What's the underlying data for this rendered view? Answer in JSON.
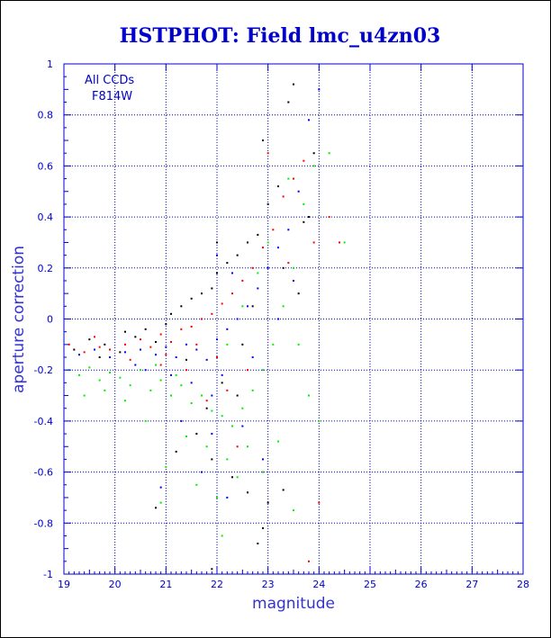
{
  "chart_data": {
    "type": "scatter",
    "title": "HSTPHOT: Field lmc_u4zn03",
    "xlabel": "magnitude",
    "ylabel": "aperture correction",
    "xlim": [
      19,
      28
    ],
    "ylim": [
      -1,
      1
    ],
    "grid": true,
    "x_ticks": [
      "19",
      "20",
      "21",
      "22",
      "23",
      "24",
      "25",
      "26",
      "27",
      "28"
    ],
    "y_ticks": [
      "-1",
      "-0.8",
      "-0.6",
      "-0.4",
      "-0.2",
      "0",
      "0.2",
      "0.4",
      "0.6",
      "0.8",
      "1"
    ],
    "annotations": [
      "All CCDs",
      "F814W"
    ],
    "series": [
      {
        "color": "#000000",
        "points": [
          [
            19.2,
            -0.12
          ],
          [
            19.5,
            -0.08
          ],
          [
            19.8,
            -0.1
          ],
          [
            20.1,
            -0.13
          ],
          [
            20.4,
            -0.07
          ],
          [
            20.6,
            -0.04
          ],
          [
            20.8,
            -0.09
          ],
          [
            21.0,
            -0.02
          ],
          [
            21.1,
            0.02
          ],
          [
            21.3,
            0.05
          ],
          [
            21.5,
            0.08
          ],
          [
            21.7,
            0.1
          ],
          [
            21.9,
            0.12
          ],
          [
            22.0,
            0.18
          ],
          [
            22.2,
            0.22
          ],
          [
            22.4,
            0.25
          ],
          [
            22.6,
            0.3
          ],
          [
            22.8,
            0.33
          ],
          [
            22.9,
            0.7
          ],
          [
            23.0,
            0.45
          ],
          [
            23.2,
            0.52
          ],
          [
            23.4,
            0.85
          ],
          [
            23.5,
            0.92
          ],
          [
            23.9,
            0.65
          ],
          [
            23.7,
            0.38
          ],
          [
            23.3,
            0.2
          ],
          [
            22.7,
            0.05
          ],
          [
            22.5,
            -0.1
          ],
          [
            22.1,
            -0.25
          ],
          [
            21.8,
            -0.35
          ],
          [
            21.6,
            -0.45
          ],
          [
            21.9,
            -0.55
          ],
          [
            22.3,
            -0.62
          ],
          [
            22.6,
            -0.68
          ],
          [
            23.0,
            -0.72
          ],
          [
            23.3,
            -0.67
          ],
          [
            22.8,
            -0.88
          ],
          [
            21.9,
            -0.98
          ],
          [
            20.8,
            -0.74
          ],
          [
            21.2,
            -0.52
          ],
          [
            22.9,
            -0.82
          ],
          [
            23.8,
            0.4
          ],
          [
            22.4,
            -0.3
          ],
          [
            21.4,
            -0.16
          ],
          [
            20.2,
            -0.05
          ],
          [
            19.7,
            -0.15
          ],
          [
            23.6,
            0.1
          ],
          [
            22.0,
            0.3
          ]
        ]
      },
      {
        "color": "#ff0000",
        "points": [
          [
            19.1,
            -0.1
          ],
          [
            19.4,
            -0.13
          ],
          [
            19.6,
            -0.07
          ],
          [
            19.9,
            -0.12
          ],
          [
            20.2,
            -0.1
          ],
          [
            20.5,
            -0.08
          ],
          [
            20.7,
            -0.11
          ],
          [
            20.9,
            -0.06
          ],
          [
            21.1,
            -0.09
          ],
          [
            21.3,
            -0.04
          ],
          [
            21.5,
            -0.03
          ],
          [
            21.7,
            0.0
          ],
          [
            21.9,
            0.02
          ],
          [
            22.1,
            0.06
          ],
          [
            22.3,
            0.1
          ],
          [
            22.5,
            0.15
          ],
          [
            22.7,
            0.2
          ],
          [
            22.9,
            0.28
          ],
          [
            23.1,
            0.35
          ],
          [
            23.3,
            0.48
          ],
          [
            23.5,
            0.55
          ],
          [
            23.7,
            0.62
          ],
          [
            23.9,
            0.3
          ],
          [
            24.2,
            0.4
          ],
          [
            24.4,
            0.3
          ],
          [
            22.6,
            -0.2
          ],
          [
            22.2,
            -0.28
          ],
          [
            21.8,
            -0.32
          ],
          [
            21.4,
            -0.2
          ],
          [
            20.9,
            -0.18
          ],
          [
            20.3,
            -0.16
          ],
          [
            19.7,
            -0.11
          ],
          [
            23.0,
            0.65
          ],
          [
            23.4,
            0.22
          ],
          [
            22.0,
            -0.15
          ],
          [
            21.6,
            -0.1
          ],
          [
            24.0,
            -0.72
          ],
          [
            23.8,
            -0.95
          ],
          [
            22.4,
            -0.5
          ],
          [
            21.0,
            -0.14
          ]
        ]
      },
      {
        "color": "#0000ff",
        "points": [
          [
            19.3,
            -0.14
          ],
          [
            19.6,
            -0.12
          ],
          [
            19.9,
            -0.15
          ],
          [
            20.2,
            -0.13
          ],
          [
            20.5,
            -0.12
          ],
          [
            20.8,
            -0.14
          ],
          [
            21.0,
            -0.11
          ],
          [
            21.2,
            -0.15
          ],
          [
            21.4,
            -0.1
          ],
          [
            21.6,
            -0.12
          ],
          [
            21.8,
            -0.16
          ],
          [
            22.0,
            -0.08
          ],
          [
            22.2,
            -0.04
          ],
          [
            22.4,
            0.0
          ],
          [
            22.6,
            0.05
          ],
          [
            22.8,
            0.12
          ],
          [
            23.0,
            0.2
          ],
          [
            23.2,
            0.28
          ],
          [
            23.4,
            0.35
          ],
          [
            23.6,
            0.5
          ],
          [
            24.0,
            0.9
          ],
          [
            23.8,
            0.78
          ],
          [
            22.3,
            0.18
          ],
          [
            22.1,
            -0.22
          ],
          [
            21.9,
            -0.3
          ],
          [
            21.5,
            -0.25
          ],
          [
            21.1,
            -0.22
          ],
          [
            20.6,
            -0.2
          ],
          [
            22.5,
            -0.42
          ],
          [
            22.9,
            -0.55
          ],
          [
            21.3,
            -0.4
          ],
          [
            21.7,
            -0.6
          ],
          [
            22.2,
            -0.7
          ],
          [
            20.9,
            -0.66
          ],
          [
            23.2,
            0.0
          ],
          [
            22.7,
            -0.15
          ],
          [
            21.9,
            -0.45
          ],
          [
            20.4,
            -0.18
          ],
          [
            23.5,
            0.15
          ],
          [
            22.0,
            0.25
          ]
        ]
      },
      {
        "color": "#00ee00",
        "points": [
          [
            19.1,
            -0.2
          ],
          [
            19.3,
            -0.22
          ],
          [
            19.5,
            -0.19
          ],
          [
            19.7,
            -0.24
          ],
          [
            19.9,
            -0.21
          ],
          [
            20.1,
            -0.23
          ],
          [
            20.3,
            -0.26
          ],
          [
            20.5,
            -0.2
          ],
          [
            20.7,
            -0.28
          ],
          [
            20.9,
            -0.24
          ],
          [
            21.1,
            -0.3
          ],
          [
            21.3,
            -0.26
          ],
          [
            21.5,
            -0.33
          ],
          [
            21.7,
            -0.3
          ],
          [
            21.9,
            -0.36
          ],
          [
            22.1,
            -0.38
          ],
          [
            22.3,
            -0.42
          ],
          [
            22.5,
            -0.35
          ],
          [
            22.7,
            -0.28
          ],
          [
            22.9,
            -0.2
          ],
          [
            23.1,
            -0.1
          ],
          [
            23.3,
            0.05
          ],
          [
            23.5,
            0.2
          ],
          [
            23.7,
            0.45
          ],
          [
            23.9,
            0.6
          ],
          [
            24.2,
            0.65
          ],
          [
            23.0,
            0.3
          ],
          [
            22.8,
            0.18
          ],
          [
            22.6,
            -0.5
          ],
          [
            22.2,
            -0.55
          ],
          [
            21.8,
            -0.5
          ],
          [
            21.4,
            -0.46
          ],
          [
            21.0,
            -0.58
          ],
          [
            20.6,
            -0.4
          ],
          [
            20.2,
            -0.32
          ],
          [
            19.8,
            -0.28
          ],
          [
            19.4,
            -0.3
          ],
          [
            23.6,
            -0.1
          ],
          [
            23.8,
            -0.3
          ],
          [
            24.0,
            -0.4
          ],
          [
            22.4,
            -0.62
          ],
          [
            22.0,
            -0.7
          ],
          [
            21.6,
            -0.65
          ],
          [
            23.2,
            -0.48
          ],
          [
            22.9,
            -0.6
          ],
          [
            23.5,
            -0.75
          ],
          [
            21.2,
            -0.22
          ],
          [
            20.8,
            -0.18
          ],
          [
            22.5,
            0.05
          ],
          [
            22.2,
            -0.1
          ],
          [
            23.4,
            0.55
          ],
          [
            24.5,
            0.3
          ],
          [
            22.1,
            -0.85
          ],
          [
            20.9,
            -0.72
          ]
        ]
      }
    ]
  }
}
